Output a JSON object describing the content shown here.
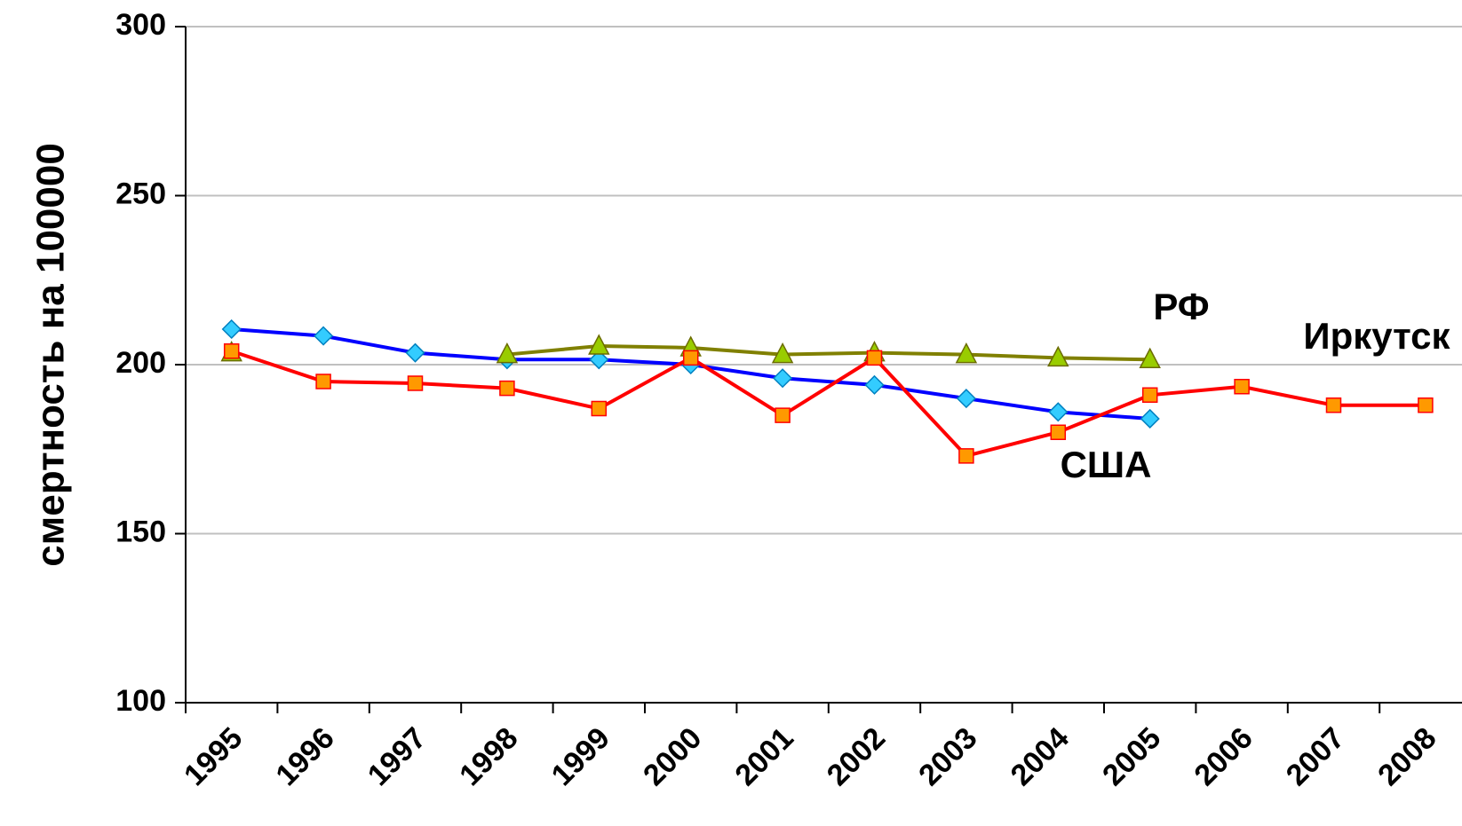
{
  "chart_data": {
    "type": "line",
    "y_label": "смертность на 100000",
    "categories": [
      "1995",
      "1996",
      "1997",
      "1998",
      "1999",
      "2000",
      "2001",
      "2002",
      "2003",
      "2004",
      "2005",
      "2006",
      "2007",
      "2008"
    ],
    "series": [
      {
        "name": "США",
        "color": "#0000ff",
        "marker": "diamond",
        "marker_fill": "#33ccff",
        "values": [
          210.5,
          208.5,
          203.5,
          201.5,
          201.5,
          200,
          196,
          194,
          190,
          186,
          184,
          null,
          null,
          null
        ]
      },
      {
        "name": "РФ",
        "color": "#808000",
        "marker": "triangle",
        "marker_fill": "#99cc00",
        "values": [
          203.5,
          null,
          null,
          203,
          205.5,
          205,
          203,
          203.5,
          203,
          202,
          201.5,
          null,
          null,
          null
        ]
      },
      {
        "name": "Иркутск",
        "color": "#ff0000",
        "marker": "square",
        "marker_fill": "#ff9900",
        "values": [
          204,
          195,
          194.5,
          193,
          187,
          202,
          185,
          202,
          173,
          180,
          191,
          193.5,
          188,
          188
        ]
      }
    ],
    "ylim": [
      100,
      300
    ],
    "yticks": [
      100,
      150,
      200,
      250,
      300
    ],
    "grid": true
  }
}
